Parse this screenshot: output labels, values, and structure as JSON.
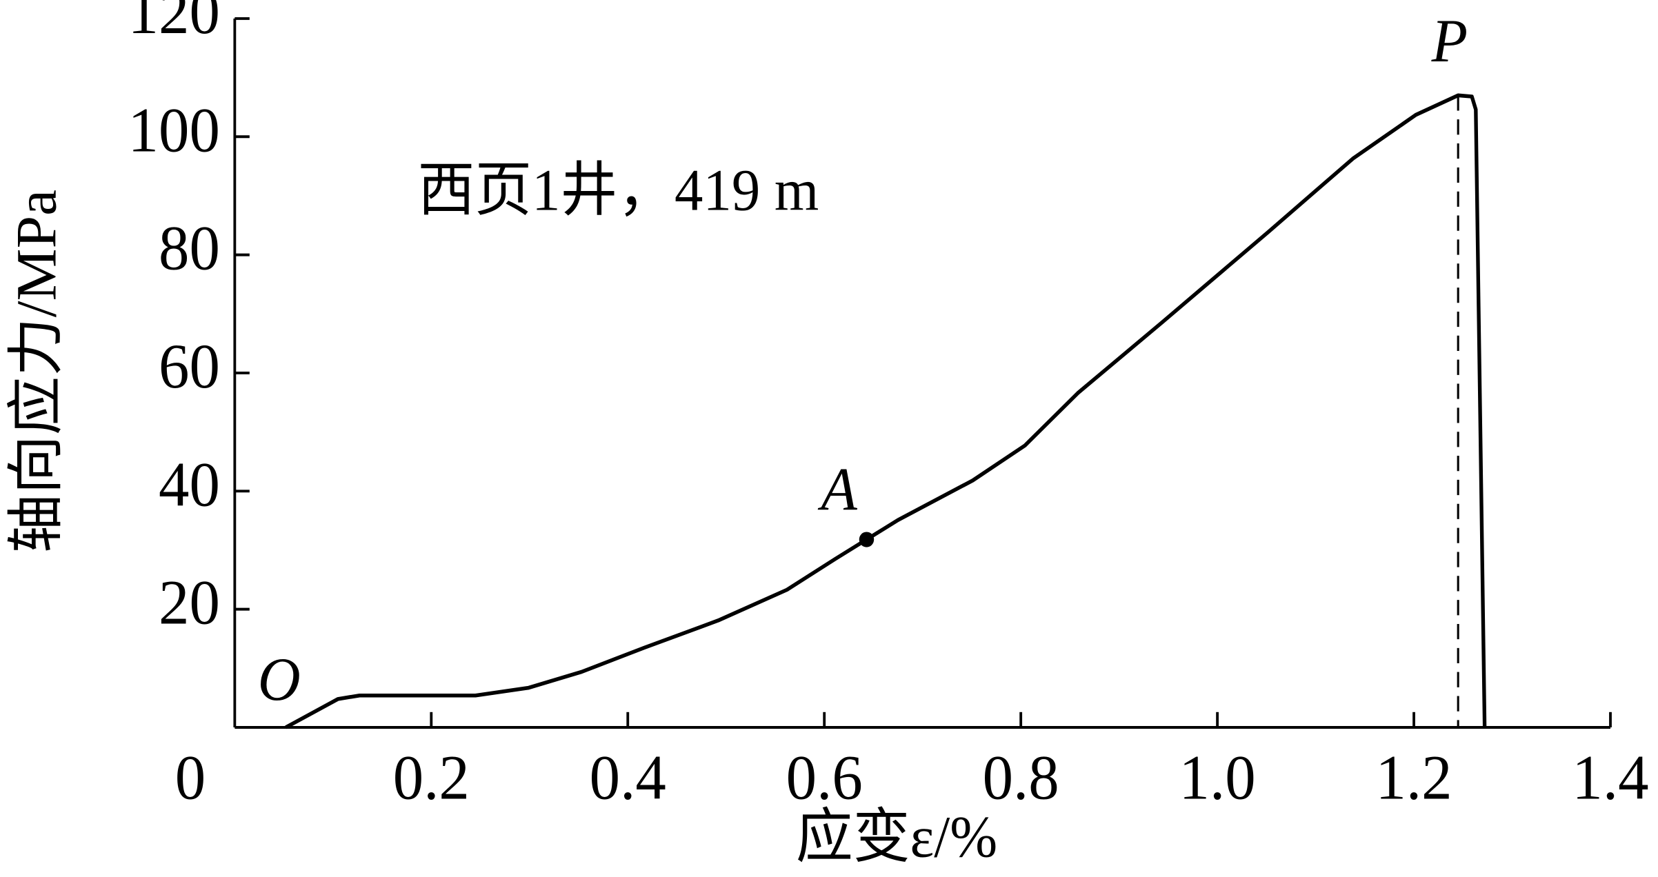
{
  "chart_data": {
    "type": "line",
    "annotation": "西页1井，419 m",
    "xlabel": "应变ε/%",
    "ylabel": "轴向应力/MPa",
    "origin_label": "O",
    "xlim": [
      0,
      1.4
    ],
    "ylim": [
      0,
      120
    ],
    "xticks": [
      0,
      0.2,
      0.4,
      0.6,
      0.8,
      {
        "value": 1,
        "label": "1.0"
      },
      1.2,
      1.4
    ],
    "yticks": [
      20,
      40,
      60,
      80,
      100,
      120
    ],
    "series": [
      {
        "color": "#000000",
        "x": [
          0.052,
          0.105,
          0.127,
          0.245,
          0.299,
          0.353,
          0.417,
          0.492,
          0.562,
          0.611,
          0.643,
          0.675,
          0.751,
          0.804,
          0.858,
          0.944,
          1.052,
          1.138,
          1.202,
          1.245,
          1.259,
          1.263,
          1.272
        ],
        "values": [
          0,
          4.8,
          5.4,
          5.4,
          6.7,
          9.4,
          13.5,
          18.1,
          23.3,
          28.5,
          31.8,
          35.1,
          41.8,
          47.7,
          56.6,
          68.6,
          83.9,
          96.3,
          103.7,
          107.0,
          106.8,
          104.6,
          0
        ]
      }
    ],
    "points": [
      {
        "label": "A",
        "x": 0.643,
        "y": 31.8
      }
    ],
    "peak": {
      "label": "P",
      "x": 1.245,
      "y": 107.0
    }
  }
}
